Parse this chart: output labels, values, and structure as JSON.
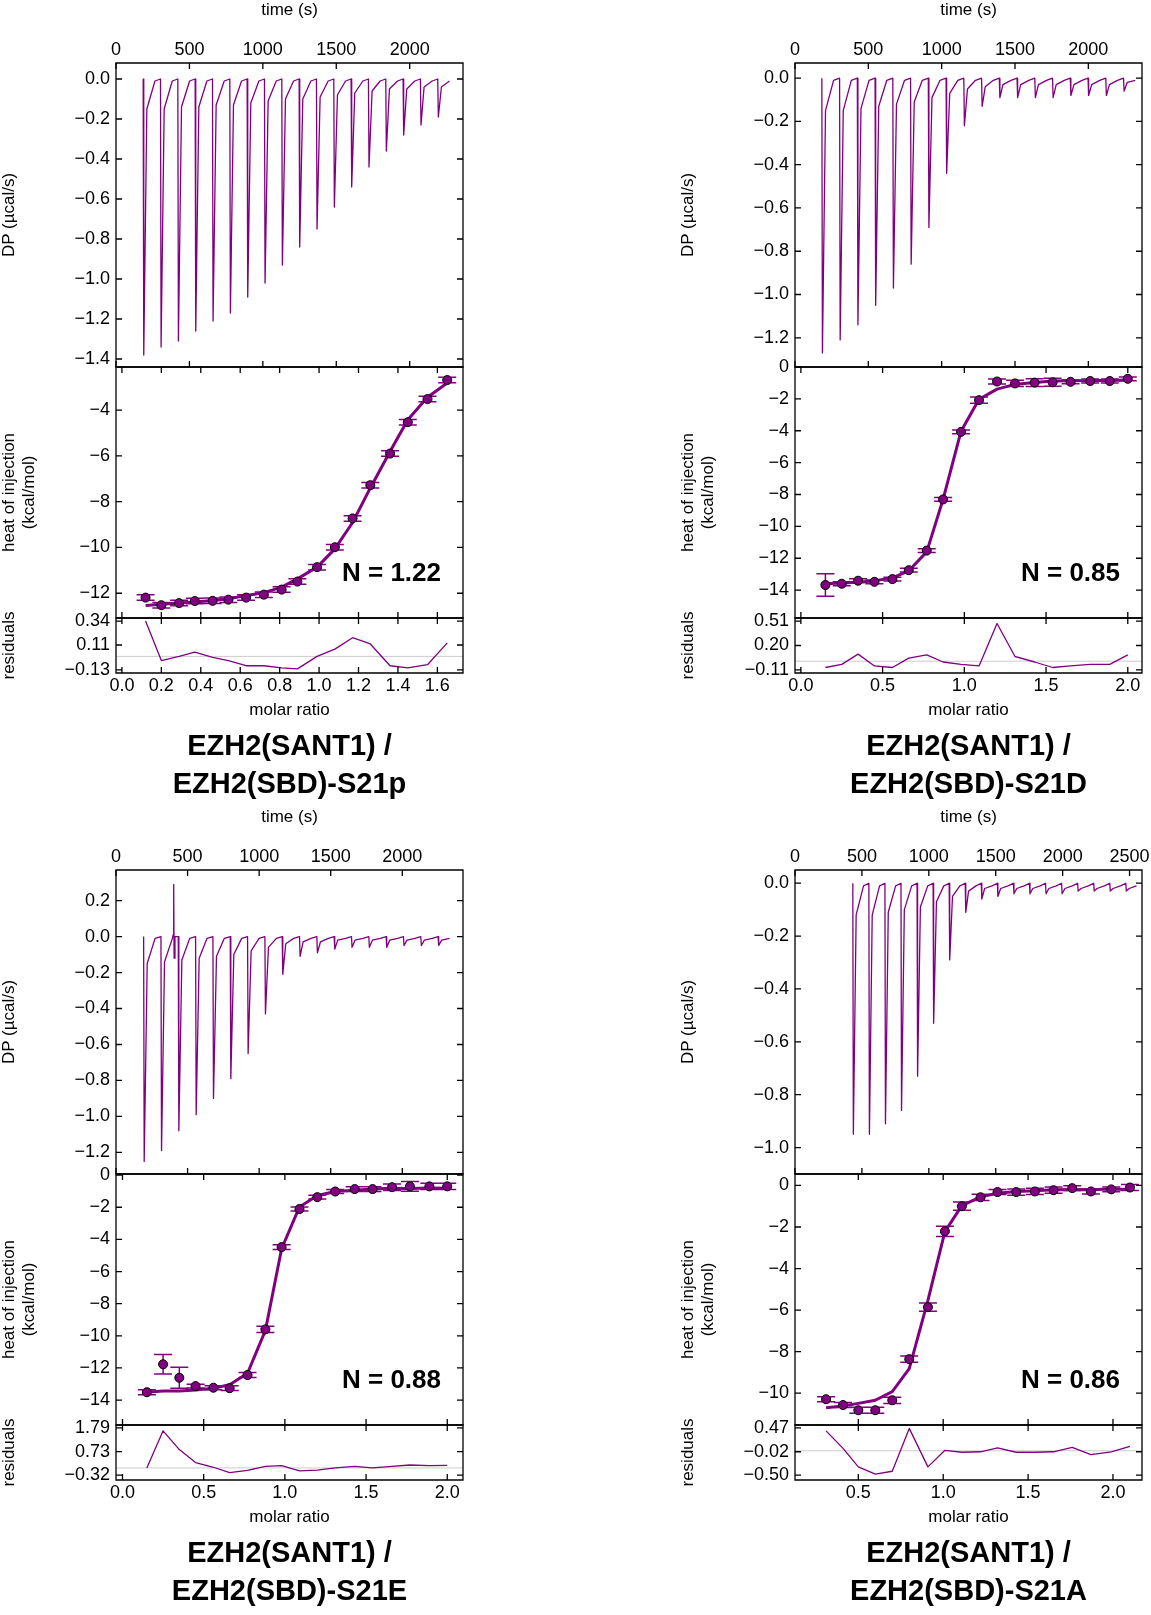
{
  "chart_data": [
    {
      "type": "line",
      "xlabel": "time (s)",
      "ylabel": "DP (µcal/s)",
      "xlim": [
        0,
        2363
      ],
      "xticks": [
        0,
        500,
        1000,
        1500,
        2000
      ],
      "ylim": [
        -1.44,
        0.08
      ],
      "yticks": [
        {
          "value": 0,
          "label": "0.0"
        },
        {
          "value": -0.2,
          "label": "−0.2"
        },
        {
          "value": -0.4,
          "label": "−0.4"
        },
        {
          "value": -0.6,
          "label": "−0.6"
        },
        {
          "value": -0.8,
          "label": "−0.8"
        },
        {
          "value": -1.0,
          "label": "−1.0"
        },
        {
          "value": -1.2,
          "label": "−1.2"
        },
        {
          "value": -1.4,
          "label": "−1.4"
        }
      ],
      "line_style": "solid",
      "color": "#800080",
      "x": [
        185,
        189,
        210,
        265,
        303,
        307,
        328,
        383,
        421,
        425,
        446,
        501,
        539,
        543,
        564,
        619,
        657,
        661,
        682,
        737,
        775,
        779,
        800,
        855,
        893,
        897,
        918,
        973,
        1011,
        1015,
        1036,
        1091,
        1129,
        1133,
        1154,
        1209,
        1247,
        1251,
        1272,
        1327,
        1365,
        1369,
        1390,
        1445,
        1483,
        1487,
        1508,
        1563,
        1601,
        1605,
        1626,
        1681,
        1719,
        1723,
        1744,
        1799,
        1837,
        1841,
        1862,
        1917,
        1955,
        1959,
        1980,
        2035,
        2073,
        2077,
        2098,
        2153,
        2191,
        2195,
        2216,
        2271
      ],
      "values": [
        0,
        -1.38,
        -0.15,
        -0.01,
        0,
        -1.34,
        -0.15,
        -0.01,
        0,
        -1.31,
        -0.14,
        -0.01,
        0,
        -1.26,
        -0.14,
        -0.01,
        0,
        -1.21,
        -0.13,
        -0.01,
        0,
        -1.17,
        -0.13,
        -0.01,
        0,
        -1.09,
        -0.12,
        -0.01,
        0,
        -1.02,
        -0.11,
        -0.01,
        0,
        -0.93,
        -0.1,
        -0.01,
        0,
        -0.84,
        -0.1,
        -0.01,
        0,
        -0.75,
        -0.09,
        -0.01,
        0,
        -0.64,
        -0.08,
        -0.01,
        0,
        -0.54,
        -0.07,
        -0.01,
        0,
        -0.44,
        -0.06,
        -0.01,
        0,
        -0.36,
        -0.05,
        -0.01,
        0,
        -0.28,
        -0.05,
        -0.01,
        0,
        -0.23,
        -0.04,
        -0.01,
        0,
        -0.19,
        -0.04,
        -0.01
      ]
    },
    {
      "type": "line",
      "ylabel": "heat of injection\n(kcal/mol)",
      "xlim": [
        -0.03,
        1.73
      ],
      "xticks": [
        0,
        0.2,
        0.4,
        0.6,
        0.8,
        1.0,
        1.2,
        1.4,
        1.6
      ],
      "ylim": [
        -13.08,
        -2.12
      ],
      "yticks": [
        {
          "value": -4,
          "label": "−4"
        },
        {
          "value": -6,
          "label": "−6"
        },
        {
          "value": -8,
          "label": "−8"
        },
        {
          "value": -10,
          "label": "−10"
        },
        {
          "value": -12,
          "label": "−12"
        }
      ],
      "tick_labels": "y",
      "line_style": "solid",
      "annotations": [
        "N = 1.22"
      ],
      "x": [
        0.12,
        0.2,
        0.29,
        0.37,
        0.46,
        0.54,
        0.63,
        0.72,
        0.81,
        0.89,
        0.99,
        1.08,
        1.17,
        1.26,
        1.36,
        1.45,
        1.55,
        1.65
      ],
      "series": [
        {
          "color": "#800080",
          "values": [
            -12.53,
            -12.48,
            -12.43,
            -12.38,
            -12.32,
            -12.24,
            -12.1,
            -11.97,
            -11.73,
            -11.37,
            -10.86,
            -10.06,
            -8.91,
            -7.4,
            -5.81,
            -4.42,
            -3.44,
            -2.82
          ]
        },
        {
          "type": "scatter",
          "marker": "circle",
          "color": "#800080",
          "values": [
            -12.19,
            -12.52,
            -12.43,
            -12.34,
            -12.33,
            -12.28,
            -12.19,
            -12.06,
            -11.84,
            -11.49,
            -10.86,
            -9.99,
            -8.73,
            -7.28,
            -5.9,
            -4.53,
            -3.52,
            -2.69
          ],
          "errors": [
            0.12,
            0.12,
            0.12,
            0.12,
            0.12,
            0.12,
            0.12,
            0.12,
            0.12,
            0.12,
            0.12,
            0.12,
            0.12,
            0.12,
            0.12,
            0.12,
            0.12,
            0.12
          ]
        }
      ]
    },
    {
      "type": "line",
      "title": "EZH2(SANT1) / EZH2(SBD)-S21p",
      "xlabel": "molar ratio",
      "ylabel": "residuals",
      "xlim": [
        -0.03,
        1.73
      ],
      "xticks": [
        {
          "value": 0,
          "label": "0.0"
        },
        {
          "value": 0.2,
          "label": "0.2"
        },
        {
          "value": 0.4,
          "label": "0.4"
        },
        {
          "value": 0.6,
          "label": "0.6"
        },
        {
          "value": 0.8,
          "label": "0.8"
        },
        {
          "value": 1.0,
          "label": "1.0"
        },
        {
          "value": 1.2,
          "label": "1.2"
        },
        {
          "value": 1.4,
          "label": "1.4"
        },
        {
          "value": 1.6,
          "label": "1.6"
        }
      ],
      "ylim": [
        -0.16,
        0.37
      ],
      "yticks": [
        {
          "value": 0.34,
          "label": "0.34"
        },
        {
          "value": 0.11,
          "label": "0.11"
        },
        {
          "value": -0.13,
          "label": "−0.13"
        }
      ],
      "ref_lines": [
        {
          "axis": "y",
          "value": 0,
          "color": "#cccccc"
        }
      ],
      "line_style": "solid",
      "color": "#800080",
      "x": [
        0.12,
        0.2,
        0.29,
        0.37,
        0.46,
        0.54,
        0.63,
        0.72,
        0.81,
        0.89,
        0.99,
        1.08,
        1.17,
        1.26,
        1.36,
        1.45,
        1.55,
        1.65
      ],
      "values": [
        0.34,
        -0.04,
        0.0,
        0.04,
        -0.01,
        -0.04,
        -0.09,
        -0.09,
        -0.11,
        -0.12,
        0.0,
        0.07,
        0.18,
        0.12,
        -0.09,
        -0.11,
        -0.08,
        0.13
      ]
    },
    {
      "type": "line",
      "xlabel": "time (s)",
      "ylabel": "DP (µcal/s)",
      "xlim": [
        0,
        2366
      ],
      "xticks": [
        0,
        500,
        1000,
        1500,
        2000
      ],
      "ylim": [
        -1.335,
        0.07
      ],
      "yticks": [
        {
          "value": 0,
          "label": "0.0"
        },
        {
          "value": -0.2,
          "label": "−0.2"
        },
        {
          "value": -0.4,
          "label": "−0.4"
        },
        {
          "value": -0.6,
          "label": "−0.6"
        },
        {
          "value": -0.8,
          "label": "−0.8"
        },
        {
          "value": -1.0,
          "label": "−1.0"
        },
        {
          "value": -1.2,
          "label": "−1.2"
        }
      ],
      "line_style": "solid",
      "color": "#800080",
      "x": [
        183,
        187,
        208,
        263,
        304,
        308,
        329,
        384,
        425,
        429,
        450,
        505,
        546,
        550,
        571,
        626,
        667,
        671,
        692,
        747,
        788,
        792,
        813,
        868,
        909,
        913,
        934,
        989,
        1030,
        1034,
        1055,
        1110,
        1151,
        1155,
        1176,
        1231,
        1272,
        1276,
        1297,
        1352,
        1393,
        1397,
        1418,
        1473,
        1514,
        1518,
        1539,
        1594,
        1635,
        1639,
        1660,
        1715,
        1756,
        1760,
        1781,
        1836,
        1877,
        1881,
        1902,
        1957,
        1998,
        2002,
        2023,
        2078,
        2119,
        2123,
        2144,
        2199,
        2240,
        2244,
        2265,
        2320
      ],
      "values": [
        0,
        -1.27,
        -0.15,
        -0.01,
        0,
        -1.21,
        -0.15,
        -0.01,
        0,
        -1.14,
        -0.14,
        -0.01,
        0,
        -1.05,
        -0.13,
        -0.01,
        0,
        -0.97,
        -0.12,
        -0.01,
        0,
        -0.86,
        -0.11,
        -0.01,
        0,
        -0.69,
        -0.09,
        -0.01,
        0,
        -0.44,
        -0.07,
        -0.01,
        0,
        -0.22,
        -0.05,
        -0.01,
        0,
        -0.13,
        -0.04,
        -0.01,
        0,
        -0.09,
        -0.03,
        -0.01,
        0,
        -0.09,
        -0.03,
        -0.01,
        0,
        -0.09,
        -0.03,
        -0.01,
        0,
        -0.09,
        -0.03,
        -0.01,
        0,
        -0.08,
        -0.03,
        -0.01,
        0,
        -0.08,
        -0.03,
        -0.01,
        0,
        -0.08,
        -0.03,
        -0.01,
        0,
        -0.06,
        -0.02,
        -0.01
      ]
    },
    {
      "type": "line",
      "ylabel": "heat of injection\n(kcal/mol)",
      "xlim": [
        -0.036,
        2.087
      ],
      "xticks": [
        0,
        0.5,
        1.0,
        1.5,
        2.0
      ],
      "ylim": [
        -15.75,
        0
      ],
      "yticks": [
        {
          "value": 0,
          "label": "0"
        },
        {
          "value": -2,
          "label": "−2"
        },
        {
          "value": -4,
          "label": "−4"
        },
        {
          "value": -6,
          "label": "−6"
        },
        {
          "value": -8,
          "label": "−8"
        },
        {
          "value": -10,
          "label": "−10"
        },
        {
          "value": -12,
          "label": "−12"
        },
        {
          "value": -14,
          "label": "−14"
        }
      ],
      "tick_labels": "y",
      "line_style": "solid",
      "annotations": [
        "N = 0.85"
      ],
      "x": [
        0.15,
        0.25,
        0.35,
        0.45,
        0.56,
        0.66,
        0.77,
        0.87,
        0.98,
        1.09,
        1.2,
        1.31,
        1.43,
        1.54,
        1.65,
        1.77,
        1.89,
        2.0
      ],
      "series": [
        {
          "color": "#800080",
          "values": [
            -13.6,
            -13.56,
            -13.5,
            -13.42,
            -13.23,
            -12.79,
            -11.6,
            -8.3,
            -4.03,
            -2.02,
            -1.39,
            -1.09,
            -0.97,
            -0.88,
            -0.87,
            -0.84,
            -0.84,
            -0.82
          ]
        },
        {
          "type": "scatter",
          "marker": "circle",
          "color": "#800080",
          "values": [
            -13.68,
            -13.6,
            -13.41,
            -13.48,
            -13.31,
            -12.75,
            -11.52,
            -8.31,
            -4.07,
            -2.08,
            -0.91,
            -1.03,
            -0.98,
            -0.96,
            -0.93,
            -0.88,
            -0.88,
            -0.74
          ],
          "errors": [
            0.7,
            0.12,
            0.12,
            0.12,
            0.12,
            0.12,
            0.12,
            0.12,
            0.12,
            0.2,
            0.15,
            0.2,
            0.25,
            0.25,
            0.12,
            0.12,
            0.12,
            0.12
          ]
        }
      ]
    },
    {
      "type": "line",
      "title": "EZH2(SANT1) / EZH2(SBD)-S21D",
      "xlabel": "molar ratio",
      "ylabel": "residuals",
      "xlim": [
        -0.036,
        2.087
      ],
      "xticks": [
        {
          "value": 0,
          "label": "0.0"
        },
        {
          "value": 0.5,
          "label": "0.5"
        },
        {
          "value": 1.0,
          "label": "1.0"
        },
        {
          "value": 1.5,
          "label": "1.5"
        },
        {
          "value": 2.0,
          "label": "2.0"
        }
      ],
      "ylim": [
        -0.15,
        0.55
      ],
      "yticks": [
        {
          "value": 0.51,
          "label": "0.51"
        },
        {
          "value": 0.2,
          "label": "0.20"
        },
        {
          "value": -0.11,
          "label": "−0.11"
        }
      ],
      "ref_lines": [
        {
          "axis": "y",
          "value": 0,
          "color": "#cccccc"
        }
      ],
      "line_style": "solid",
      "color": "#800080",
      "x": [
        0.15,
        0.25,
        0.35,
        0.45,
        0.56,
        0.66,
        0.77,
        0.87,
        0.98,
        1.09,
        1.2,
        1.31,
        1.43,
        1.54,
        1.65,
        1.77,
        1.89,
        2.0
      ],
      "values": [
        -0.08,
        -0.04,
        0.09,
        -0.06,
        -0.08,
        0.04,
        0.08,
        -0.01,
        -0.04,
        -0.06,
        0.48,
        0.06,
        -0.01,
        -0.08,
        -0.06,
        -0.04,
        -0.04,
        0.08
      ]
    },
    {
      "type": "line",
      "xlabel": "time (s)",
      "ylabel": "DP (µcal/s)",
      "xlim": [
        0,
        2424
      ],
      "xticks": [
        0,
        500,
        1000,
        1500,
        2000
      ],
      "ylim": [
        -1.32,
        0.37
      ],
      "yticks": [
        {
          "value": 0.2,
          "label": "0.2"
        },
        {
          "value": 0,
          "label": "0.0"
        },
        {
          "value": -0.2,
          "label": "−0.2"
        },
        {
          "value": -0.4,
          "label": "−0.4"
        },
        {
          "value": -0.6,
          "label": "−0.6"
        },
        {
          "value": -0.8,
          "label": "−0.8"
        },
        {
          "value": -1.0,
          "label": "−1.0"
        },
        {
          "value": -1.2,
          "label": "−1.2"
        }
      ],
      "line_style": "solid",
      "color": "#800080",
      "x": [
        193,
        197,
        218,
        273,
        314,
        318,
        339,
        394,
        400,
        403,
        406,
        412,
        435,
        439,
        460,
        515,
        556,
        560,
        581,
        636,
        677,
        681,
        702,
        757,
        798,
        802,
        823,
        878,
        919,
        923,
        944,
        999,
        1040,
        1044,
        1065,
        1120,
        1161,
        1165,
        1186,
        1241,
        1282,
        1286,
        1307,
        1362,
        1403,
        1407,
        1428,
        1483,
        1524,
        1528,
        1549,
        1604,
        1645,
        1649,
        1670,
        1725,
        1766,
        1770,
        1791,
        1846,
        1887,
        1891,
        1912,
        1967,
        2008,
        2012,
        2033,
        2088,
        2129,
        2133,
        2154,
        2209,
        2250,
        2254,
        2275,
        2330
      ],
      "values": [
        0,
        -1.25,
        -0.15,
        -0.01,
        0,
        -1.19,
        -0.14,
        -0.01,
        0.01,
        0.29,
        -0.12,
        0,
        0,
        -1.08,
        -0.13,
        -0.01,
        0,
        -0.99,
        -0.12,
        -0.01,
        0,
        -0.9,
        -0.11,
        -0.01,
        0,
        -0.79,
        -0.1,
        -0.01,
        0,
        -0.65,
        -0.08,
        -0.01,
        0,
        -0.43,
        -0.06,
        -0.01,
        0,
        -0.21,
        -0.04,
        -0.01,
        0,
        -0.11,
        -0.03,
        -0.01,
        0,
        -0.09,
        -0.03,
        -0.01,
        0,
        -0.07,
        -0.02,
        -0.01,
        0,
        -0.06,
        -0.02,
        -0.01,
        0,
        -0.06,
        -0.02,
        -0.01,
        0,
        -0.06,
        -0.02,
        -0.01,
        0,
        -0.05,
        -0.02,
        -0.01,
        0,
        -0.05,
        -0.02,
        -0.01,
        0,
        -0.05,
        -0.02,
        -0.01
      ]
    },
    {
      "type": "line",
      "ylabel": "heat of injection\n(kcal/mol)",
      "xlim": [
        -0.04,
        2.097
      ],
      "xticks": [
        0,
        0.5,
        1.0,
        1.5,
        2.0
      ],
      "ylim": [
        -15.55,
        0.07
      ],
      "yticks": [
        {
          "value": 0,
          "label": "0"
        },
        {
          "value": -2,
          "label": "−2"
        },
        {
          "value": -4,
          "label": "−4"
        },
        {
          "value": -6,
          "label": "−6"
        },
        {
          "value": -8,
          "label": "−8"
        },
        {
          "value": -10,
          "label": "−10"
        },
        {
          "value": -12,
          "label": "−12"
        },
        {
          "value": -14,
          "label": "−14"
        }
      ],
      "tick_labels": "y",
      "line_style": "solid",
      "annotations": [
        "N = 0.88"
      ],
      "x": [
        0.15,
        0.25,
        0.35,
        0.45,
        0.56,
        0.66,
        0.77,
        0.88,
        0.98,
        1.09,
        1.2,
        1.31,
        1.43,
        1.54,
        1.66,
        1.77,
        1.89,
        2.0
      ],
      "series": [
        {
          "color": "#800080",
          "values": [
            -13.51,
            -13.43,
            -13.43,
            -13.37,
            -13.26,
            -13.05,
            -12.33,
            -9.67,
            -4.58,
            -1.98,
            -1.27,
            -1.02,
            -0.94,
            -0.87,
            -0.82,
            -0.83,
            -0.8,
            -0.81
          ]
        },
        {
          "type": "scatter",
          "marker": "circle",
          "color": "#800080",
          "values": [
            -13.51,
            -11.77,
            -12.61,
            -13.13,
            -13.23,
            -13.26,
            -12.44,
            -9.6,
            -4.48,
            -2.11,
            -1.37,
            -1.02,
            -0.87,
            -0.87,
            -0.75,
            -0.7,
            -0.7,
            -0.7
          ],
          "errors": [
            0.15,
            0.6,
            0.65,
            0.12,
            0.12,
            0.15,
            0.15,
            0.2,
            0.15,
            0.12,
            0.12,
            0.12,
            0.15,
            0.15,
            0.2,
            0.3,
            0.2,
            0.2
          ]
        }
      ]
    },
    {
      "type": "line",
      "title": "EZH2(SANT1) / EZH2(SBD)-S21E",
      "xlabel": "molar ratio",
      "ylabel": "residuals",
      "xlim": [
        -0.04,
        2.097
      ],
      "xticks": [
        {
          "value": 0,
          "label": "0.0"
        },
        {
          "value": 0.5,
          "label": "0.5"
        },
        {
          "value": 1.0,
          "label": "1.0"
        },
        {
          "value": 1.5,
          "label": "1.5"
        },
        {
          "value": 2.0,
          "label": "2.0"
        }
      ],
      "ylim": [
        -0.54,
        1.92
      ],
      "yticks": [
        {
          "value": 1.79,
          "label": "1.79"
        },
        {
          "value": 0.73,
          "label": "0.73"
        },
        {
          "value": -0.32,
          "label": "−0.32"
        }
      ],
      "ref_lines": [
        {
          "axis": "y",
          "value": 0,
          "color": "#cccccc"
        }
      ],
      "line_style": "solid",
      "color": "#800080",
      "x": [
        0.15,
        0.25,
        0.35,
        0.45,
        0.56,
        0.66,
        0.77,
        0.88,
        0.98,
        1.09,
        1.2,
        1.31,
        1.43,
        1.54,
        1.66,
        1.77,
        1.89,
        2.0
      ],
      "values": [
        0.0,
        1.66,
        0.82,
        0.24,
        0.03,
        -0.21,
        -0.11,
        0.07,
        0.1,
        -0.13,
        -0.1,
        0.0,
        0.07,
        0.0,
        0.07,
        0.13,
        0.1,
        0.11
      ]
    },
    {
      "type": "line",
      "xlabel": "time (s)",
      "ylabel": "DP (µcal/s)",
      "xlim": [
        0,
        2593
      ],
      "xticks": [
        0,
        500,
        1000,
        1500,
        2000,
        2500
      ],
      "ylim": [
        -1.1,
        0.05
      ],
      "yticks": [
        {
          "value": 0,
          "label": "0.0"
        },
        {
          "value": -0.2,
          "label": "−0.2"
        },
        {
          "value": -0.4,
          "label": "−0.4"
        },
        {
          "value": -0.6,
          "label": "−0.6"
        },
        {
          "value": -0.8,
          "label": "−0.8"
        },
        {
          "value": -1.0,
          "label": "−1.0"
        }
      ],
      "line_style": "solid",
      "color": "#800080",
      "x": [
        432,
        436,
        457,
        512,
        552,
        556,
        577,
        632,
        672,
        676,
        697,
        752,
        792,
        796,
        817,
        872,
        912,
        916,
        937,
        992,
        1032,
        1036,
        1057,
        1112,
        1152,
        1156,
        1177,
        1232,
        1272,
        1276,
        1297,
        1352,
        1392,
        1396,
        1417,
        1472,
        1512,
        1516,
        1537,
        1592,
        1632,
        1636,
        1657,
        1712,
        1752,
        1756,
        1777,
        1832,
        1872,
        1876,
        1897,
        1952,
        1992,
        1996,
        2017,
        2072,
        2112,
        2116,
        2137,
        2192,
        2232,
        2236,
        2257,
        2312,
        2352,
        2356,
        2377,
        2432,
        2472,
        2476,
        2497,
        2552
      ],
      "values": [
        0,
        -0.95,
        -0.12,
        -0.01,
        0,
        -0.95,
        -0.12,
        -0.01,
        0,
        -0.91,
        -0.11,
        -0.01,
        0,
        -0.86,
        -0.1,
        -0.01,
        0,
        -0.73,
        -0.09,
        -0.01,
        0,
        -0.53,
        -0.07,
        -0.01,
        0,
        -0.29,
        -0.05,
        -0.01,
        0,
        -0.11,
        -0.03,
        -0.01,
        0,
        -0.06,
        -0.02,
        -0.01,
        0,
        -0.05,
        -0.02,
        -0.01,
        0,
        -0.04,
        -0.02,
        -0.01,
        0,
        -0.04,
        -0.02,
        -0.01,
        0,
        -0.04,
        -0.02,
        -0.01,
        0,
        -0.04,
        -0.02,
        -0.01,
        0,
        -0.03,
        -0.02,
        -0.01,
        0,
        -0.03,
        -0.02,
        -0.01,
        0,
        -0.03,
        -0.02,
        -0.01,
        0,
        -0.03,
        -0.02,
        -0.01
      ]
    },
    {
      "type": "line",
      "ylabel": "heat of injection\n(kcal/mol)",
      "xlim": [
        0.127,
        2.171
      ],
      "xticks": [
        0.5,
        1.0,
        1.5,
        2.0
      ],
      "ylim": [
        -11.53,
        0.55
      ],
      "yticks": [
        {
          "value": 0,
          "label": "0"
        },
        {
          "value": -2,
          "label": "−2"
        },
        {
          "value": -4,
          "label": "−4"
        },
        {
          "value": -6,
          "label": "−6"
        },
        {
          "value": -8,
          "label": "−8"
        },
        {
          "value": -10,
          "label": "−10"
        }
      ],
      "tick_labels": "y",
      "line_style": "solid",
      "annotations": [
        "N = 0.86"
      ],
      "x": [
        0.31,
        0.41,
        0.5,
        0.6,
        0.7,
        0.8,
        0.91,
        1.01,
        1.11,
        1.22,
        1.32,
        1.43,
        1.54,
        1.65,
        1.76,
        1.87,
        1.99,
        2.1
      ],
      "series": [
        {
          "color": "#800080",
          "values": [
            -10.7,
            -10.62,
            -10.49,
            -10.34,
            -9.92,
            -8.82,
            -5.53,
            -2.22,
            -0.97,
            -0.55,
            -0.38,
            -0.29,
            -0.26,
            -0.21,
            -0.2,
            -0.21,
            -0.17,
            -0.19
          ]
        },
        {
          "type": "scatter",
          "marker": "circle",
          "color": "#800080",
          "values": [
            -10.29,
            -10.57,
            -10.82,
            -10.82,
            -10.34,
            -8.36,
            -5.86,
            -2.21,
            -1.0,
            -0.57,
            -0.32,
            -0.32,
            -0.29,
            -0.23,
            -0.13,
            -0.29,
            -0.19,
            -0.1
          ],
          "errors": [
            0.12,
            0.12,
            0.15,
            0.15,
            0.15,
            0.15,
            0.2,
            0.25,
            0.2,
            0.15,
            0.12,
            0.15,
            0.15,
            0.15,
            0.12,
            0.12,
            0.12,
            0.15
          ]
        }
      ]
    },
    {
      "type": "line",
      "title": "EZH2(SANT1) / EZH2(SBD)-S21A",
      "xlabel": "molar ratio",
      "ylabel": "residuals",
      "xlim": [
        0.127,
        2.171
      ],
      "xticks": [
        {
          "value": 0.5,
          "label": "0.5"
        },
        {
          "value": 1.0,
          "label": "1.0"
        },
        {
          "value": 1.5,
          "label": "1.5"
        },
        {
          "value": 2.0,
          "label": "2.0"
        }
      ],
      "ylim": [
        -0.6,
        0.53
      ],
      "yticks": [
        {
          "value": 0.47,
          "label": "0.47"
        },
        {
          "value": -0.02,
          "label": "−0.02"
        },
        {
          "value": -0.5,
          "label": "−0.50"
        }
      ],
      "ref_lines": [
        {
          "axis": "y",
          "value": 0,
          "color": "#cccccc"
        }
      ],
      "line_style": "solid",
      "color": "#800080",
      "x": [
        0.31,
        0.41,
        0.5,
        0.6,
        0.7,
        0.8,
        0.91,
        1.01,
        1.11,
        1.22,
        1.32,
        1.43,
        1.54,
        1.65,
        1.76,
        1.87,
        1.99,
        2.1
      ],
      "values": [
        0.41,
        0.05,
        -0.33,
        -0.48,
        -0.42,
        0.46,
        -0.33,
        0.01,
        -0.03,
        -0.02,
        0.06,
        -0.03,
        -0.03,
        -0.02,
        0.07,
        -0.08,
        -0.02,
        0.09
      ]
    }
  ]
}
